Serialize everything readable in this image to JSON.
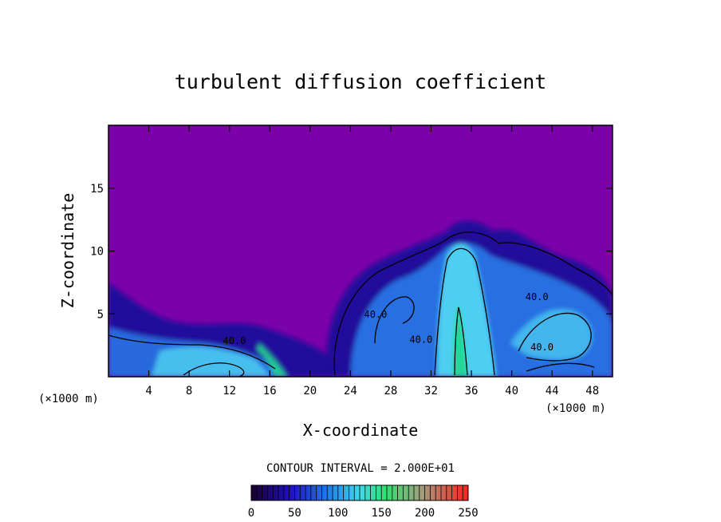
{
  "chart_data": {
    "type": "heatmap",
    "title": "turbulent diffusion coefficient",
    "xlabel": "X-coordinate",
    "ylabel": "Z-coordinate",
    "x_unit": "(×1000 m)",
    "z_unit": "(×1000 m)",
    "xlim": [
      0,
      50
    ],
    "ylim": [
      0,
      20
    ],
    "x_ticks": [
      4,
      8,
      12,
      16,
      20,
      24,
      28,
      32,
      36,
      40,
      44,
      48
    ],
    "y_ticks": [
      5,
      10,
      15
    ],
    "contour_interval_text": "CONTOUR INTERVAL = 2.000E+01",
    "contour_labels": [
      {
        "text": "40.0",
        "x": 12.5,
        "y": 2.6
      },
      {
        "text": "40.0",
        "x": 26.5,
        "y": 4.7
      },
      {
        "text": "40.0",
        "x": 31.0,
        "y": 2.7
      },
      {
        "text": "40.0",
        "x": 42.5,
        "y": 6.1
      },
      {
        "text": "40.0",
        "x": 43.0,
        "y": 2.1
      }
    ],
    "colorbar": {
      "range": [
        0,
        250
      ],
      "ticks": [
        0,
        50,
        100,
        150,
        200,
        250
      ]
    },
    "colors": {
      "background": "#7a02a8",
      "low": "#1a0a9a",
      "mid": "#2a7bea",
      "high": "#4fd4f2",
      "peak": "#22d890"
    }
  }
}
